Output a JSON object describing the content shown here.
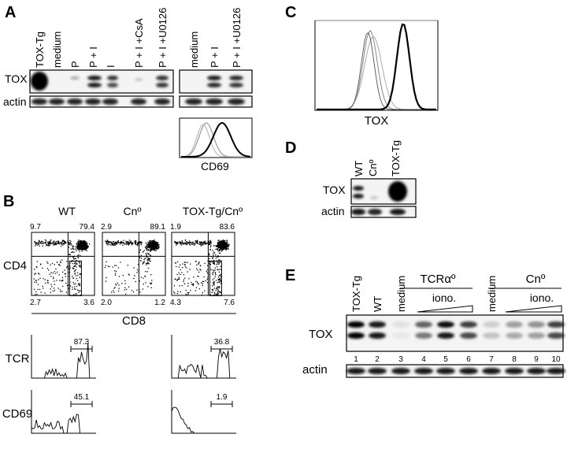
{
  "panels": [
    "A",
    "B",
    "C",
    "D",
    "E"
  ],
  "panel_a": {
    "lanes_left": [
      "TOX-Tg",
      "medium",
      "P",
      "P + I",
      "I",
      "P + I +CsA",
      "P + I +U0126"
    ],
    "lanes_right": [
      "medium",
      "P + I",
      "P + I +U0126"
    ],
    "rows": [
      "TOX",
      "actin"
    ],
    "histogram_label": "CD69"
  },
  "panel_b": {
    "columns": [
      "WT",
      "Cnº",
      "TOX-Tg/Cnº"
    ],
    "quadrants": [
      [
        "9.7",
        "79.4",
        "2.7",
        "3.6"
      ],
      [
        "2.9",
        "89.1",
        "2.0",
        "1.2"
      ],
      [
        "1.9",
        "83.6",
        "4.3",
        "7.6"
      ]
    ],
    "y_label": "CD4",
    "x_label": "CD8",
    "histograms": [
      {
        "label": "TCR",
        "gates": [
          "87.3",
          "36.8"
        ]
      },
      {
        "label": "CD69",
        "gates": [
          "45.1",
          "1.9"
        ]
      }
    ]
  },
  "panel_c": {
    "x_label": "TOX"
  },
  "panel_d": {
    "lanes": [
      "WT",
      "Cnº",
      "TOX-Tg"
    ],
    "rows": [
      "TOX",
      "actin"
    ]
  },
  "panel_e": {
    "lanes": [
      "TOX-Tg",
      "WT",
      "medium",
      "medium"
    ],
    "groups": [
      {
        "label": "TCRαº",
        "treatment": "iono."
      },
      {
        "label": "Cnº",
        "treatment": "iono."
      }
    ],
    "rows": [
      "TOX",
      "actin"
    ],
    "lane_numbers": [
      "1",
      "2",
      "3",
      "4",
      "5",
      "6",
      "7",
      "8",
      "9",
      "10"
    ]
  }
}
